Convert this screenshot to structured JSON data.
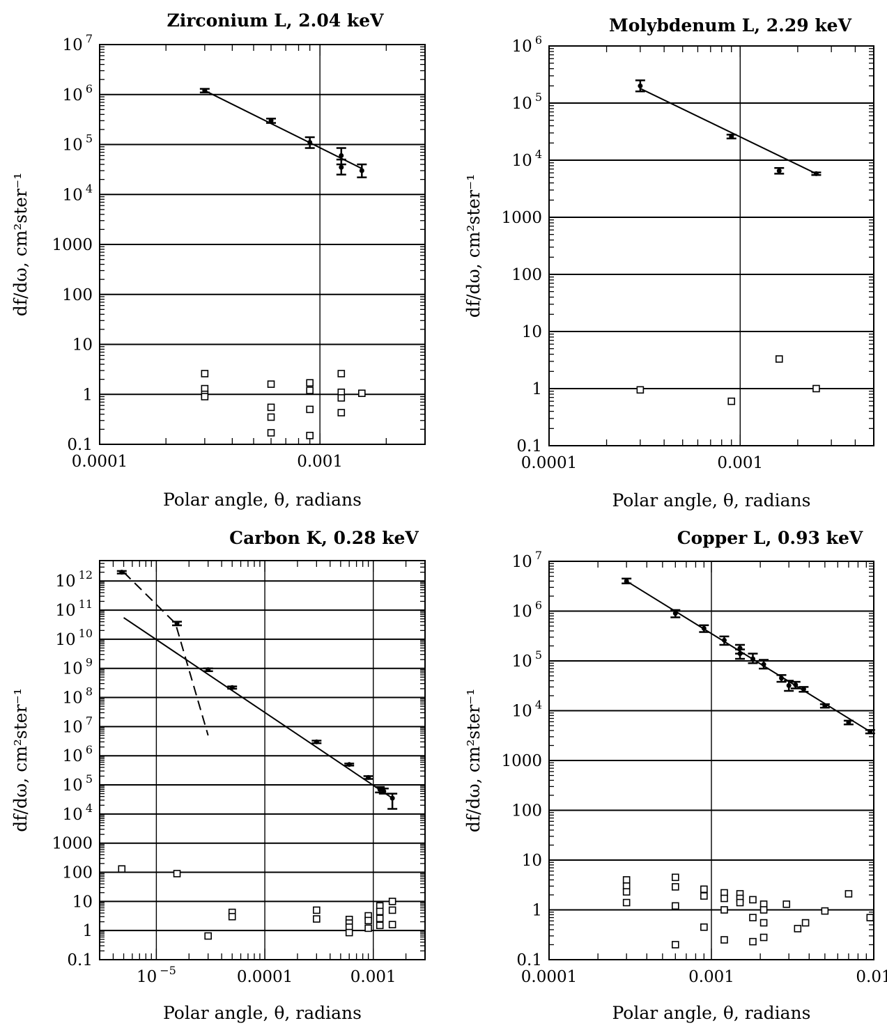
{
  "chart_data": [
    {
      "type": "scatter",
      "title": "Zirconium L, 2.04 keV",
      "xlabel": "Polar angle, θ, radians",
      "ylabel": "df/dω, cm²ster⁻¹",
      "xscale": "log",
      "yscale": "log",
      "xlim": [
        0.0001,
        0.003
      ],
      "ylim": [
        0.1,
        10000000
      ],
      "xticks": [
        {
          "v": 0.0001,
          "label": "0.0001"
        },
        {
          "v": 0.001,
          "label": "0.001"
        }
      ],
      "yticks": [
        {
          "v": 10000000,
          "label": "10",
          "sup": "7"
        },
        {
          "v": 1000000,
          "label": "10",
          "sup": "6"
        },
        {
          "v": 100000,
          "label": "10",
          "sup": "5"
        },
        {
          "v": 10000,
          "label": "10",
          "sup": "4"
        },
        {
          "v": 1000,
          "label": "1000"
        },
        {
          "v": 100,
          "label": "100"
        },
        {
          "v": 10,
          "label": "10"
        },
        {
          "v": 1,
          "label": "1"
        },
        {
          "v": 0.1,
          "label": "0.1"
        }
      ],
      "grid": {
        "y": true,
        "x": [
          0.001
        ]
      },
      "fit_lines": [
        {
          "style": "solid",
          "points": [
            [
              0.0003,
              1200000
            ],
            [
              0.00155,
              33000
            ]
          ]
        }
      ],
      "measured": [
        {
          "x": 0.0003,
          "y": 1200000,
          "lo": 1100000,
          "hi": 1300000
        },
        {
          "x": 0.0006,
          "y": 300000,
          "lo": 270000,
          "hi": 330000
        },
        {
          "x": 0.0009,
          "y": 110000,
          "lo": 85000,
          "hi": 140000
        },
        {
          "x": 0.00125,
          "y": 60000,
          "lo": 40000,
          "hi": 85000
        },
        {
          "x": 0.00125,
          "y": 35000,
          "lo": 25000,
          "hi": 50000
        },
        {
          "x": 0.00155,
          "y": 30000,
          "lo": 22000,
          "hi": 40000
        }
      ],
      "ratios": [
        {
          "x": 0.0003,
          "y": 2.6
        },
        {
          "x": 0.0003,
          "y": 1.3
        },
        {
          "x": 0.0003,
          "y": 1.0
        },
        {
          "x": 0.0003,
          "y": 0.9
        },
        {
          "x": 0.0006,
          "y": 1.6
        },
        {
          "x": 0.0006,
          "y": 0.55
        },
        {
          "x": 0.0006,
          "y": 0.35
        },
        {
          "x": 0.0006,
          "y": 0.17
        },
        {
          "x": 0.0009,
          "y": 1.7
        },
        {
          "x": 0.0009,
          "y": 1.2
        },
        {
          "x": 0.0009,
          "y": 0.5
        },
        {
          "x": 0.0009,
          "y": 0.15
        },
        {
          "x": 0.00125,
          "y": 2.6
        },
        {
          "x": 0.00125,
          "y": 1.1
        },
        {
          "x": 0.00125,
          "y": 0.85
        },
        {
          "x": 0.00125,
          "y": 0.43
        },
        {
          "x": 0.00155,
          "y": 1.05
        }
      ]
    },
    {
      "type": "scatter",
      "title": "Molybdenum L, 2.29 keV",
      "xlabel": "Polar angle, θ, radians",
      "ylabel": "df/dω, cm²ster⁻¹",
      "xscale": "log",
      "yscale": "log",
      "xlim": [
        0.0001,
        0.005
      ],
      "ylim": [
        0.1,
        1000000
      ],
      "xticks": [
        {
          "v": 0.0001,
          "label": "0.0001"
        },
        {
          "v": 0.001,
          "label": "0.001"
        }
      ],
      "yticks": [
        {
          "v": 1000000,
          "label": "10",
          "sup": "6"
        },
        {
          "v": 100000,
          "label": "10",
          "sup": "5"
        },
        {
          "v": 10000,
          "label": "10",
          "sup": "4"
        },
        {
          "v": 1000,
          "label": "1000"
        },
        {
          "v": 100,
          "label": "100"
        },
        {
          "v": 10,
          "label": "10"
        },
        {
          "v": 1,
          "label": "1"
        },
        {
          "v": 0.1,
          "label": "0.1"
        }
      ],
      "grid": {
        "y": true,
        "x": [
          0.001
        ]
      },
      "fit_lines": [
        {
          "style": "solid",
          "points": [
            [
              0.0003,
              180000
            ],
            [
              0.0025,
              5800
            ]
          ]
        }
      ],
      "measured": [
        {
          "x": 0.0003,
          "y": 200000,
          "lo": 160000,
          "hi": 250000
        },
        {
          "x": 0.0009,
          "y": 26000,
          "lo": 24000,
          "hi": 28000
        },
        {
          "x": 0.0016,
          "y": 6500,
          "lo": 5800,
          "hi": 7300
        },
        {
          "x": 0.0025,
          "y": 5800,
          "lo": 5500,
          "hi": 6100
        }
      ],
      "ratios": [
        {
          "x": 0.0003,
          "y": 0.95
        },
        {
          "x": 0.0009,
          "y": 0.6
        },
        {
          "x": 0.0016,
          "y": 3.3
        },
        {
          "x": 0.0025,
          "y": 1.0
        }
      ]
    },
    {
      "type": "scatter",
      "title": "Carbon K, 0.28 keV",
      "xlabel": "Polar angle, θ, radians",
      "ylabel": "df/dω, cm²ster⁻¹",
      "xscale": "log",
      "yscale": "log",
      "xlim": [
        3e-06,
        0.003
      ],
      "ylim": [
        0.1,
        5000000000000
      ],
      "xticks": [
        {
          "v": 1e-05,
          "label": "10",
          "sup": "−5"
        },
        {
          "v": 0.0001,
          "label": "0.0001"
        },
        {
          "v": 0.001,
          "label": "0.001"
        }
      ],
      "yticks": [
        {
          "v": 1000000000000,
          "label": "10",
          "sup": "12"
        },
        {
          "v": 100000000000,
          "label": "10",
          "sup": "11"
        },
        {
          "v": 10000000000,
          "label": "10",
          "sup": "10"
        },
        {
          "v": 1000000000,
          "label": "10",
          "sup": "9"
        },
        {
          "v": 100000000,
          "label": "10",
          "sup": "8"
        },
        {
          "v": 10000000,
          "label": "10",
          "sup": "7"
        },
        {
          "v": 1000000,
          "label": "10",
          "sup": "6"
        },
        {
          "v": 100000,
          "label": "10",
          "sup": "5"
        },
        {
          "v": 10000,
          "label": "10",
          "sup": "4"
        },
        {
          "v": 1000,
          "label": "1000"
        },
        {
          "v": 100,
          "label": "100"
        },
        {
          "v": 10,
          "label": "10"
        },
        {
          "v": 1,
          "label": "1"
        },
        {
          "v": 0.1,
          "label": "0.1"
        }
      ],
      "grid": {
        "y": true,
        "x": [
          1e-05,
          0.0001,
          0.001
        ]
      },
      "fit_lines": [
        {
          "style": "solid",
          "points": [
            [
              5e-06,
              55000000000
            ],
            [
              0.0015,
              35000
            ]
          ]
        },
        {
          "style": "dashed",
          "points": [
            [
              5e-06,
              2000000000000
            ],
            [
              1.5e-05,
              35000000000
            ],
            [
              3e-05,
              5000000
            ]
          ]
        }
      ],
      "measured": [
        {
          "x": 4.8e-06,
          "y": 2000000000000,
          "lo": 1800000000000,
          "hi": 2200000000000
        },
        {
          "x": 1.55e-05,
          "y": 35000000000,
          "lo": 30000000000,
          "hi": 40000000000
        },
        {
          "x": 3e-05,
          "y": 900000000,
          "lo": 800000000,
          "hi": 1000000000
        },
        {
          "x": 5e-05,
          "y": 220000000,
          "lo": 200000000,
          "hi": 240000000
        },
        {
          "x": 0.0003,
          "y": 3000000,
          "lo": 2700000,
          "hi": 3300000
        },
        {
          "x": 0.0006,
          "y": 500000,
          "lo": 460000,
          "hi": 540000
        },
        {
          "x": 0.0009,
          "y": 180000,
          "lo": 160000,
          "hi": 200000
        },
        {
          "x": 0.00115,
          "y": 70000,
          "lo": 55000,
          "hi": 85000
        },
        {
          "x": 0.00125,
          "y": 60000,
          "lo": 50000,
          "hi": 75000
        },
        {
          "x": 0.0015,
          "y": 35000,
          "lo": 15000,
          "hi": 50000
        }
      ],
      "ratios": [
        {
          "x": 4.8e-06,
          "y": 130
        },
        {
          "x": 1.55e-05,
          "y": 90
        },
        {
          "x": 3e-05,
          "y": 0.65
        },
        {
          "x": 5e-05,
          "y": 4.2
        },
        {
          "x": 5e-05,
          "y": 3.0
        },
        {
          "x": 0.0003,
          "y": 5.0
        },
        {
          "x": 0.0003,
          "y": 2.5
        },
        {
          "x": 0.0006,
          "y": 2.4
        },
        {
          "x": 0.0006,
          "y": 1.8
        },
        {
          "x": 0.0006,
          "y": 1.3
        },
        {
          "x": 0.0006,
          "y": 0.85
        },
        {
          "x": 0.0009,
          "y": 3.2
        },
        {
          "x": 0.0009,
          "y": 2.2
        },
        {
          "x": 0.0009,
          "y": 1.2
        },
        {
          "x": 0.00115,
          "y": 7.0
        },
        {
          "x": 0.00115,
          "y": 4.5
        },
        {
          "x": 0.00115,
          "y": 2.6
        },
        {
          "x": 0.00115,
          "y": 1.5
        },
        {
          "x": 0.0015,
          "y": 10.0
        },
        {
          "x": 0.0015,
          "y": 5.0
        },
        {
          "x": 0.0015,
          "y": 1.6
        }
      ]
    },
    {
      "type": "scatter",
      "title": "Copper L, 0.93 keV",
      "xlabel": "Polar angle, θ, radians",
      "ylabel": "df/dω, cm²ster⁻¹",
      "xscale": "log",
      "yscale": "log",
      "xlim": [
        0.0001,
        0.01
      ],
      "ylim": [
        0.1,
        10000000
      ],
      "xticks": [
        {
          "v": 0.0001,
          "label": "0.0001"
        },
        {
          "v": 0.001,
          "label": "0.001"
        },
        {
          "v": 0.01,
          "label": "0.01"
        }
      ],
      "yticks": [
        {
          "v": 10000000,
          "label": "10",
          "sup": "7"
        },
        {
          "v": 1000000,
          "label": "10",
          "sup": "6"
        },
        {
          "v": 100000,
          "label": "10",
          "sup": "5"
        },
        {
          "v": 10000,
          "label": "10",
          "sup": "4"
        },
        {
          "v": 1000,
          "label": "1000"
        },
        {
          "v": 100,
          "label": "100"
        },
        {
          "v": 10,
          "label": "10"
        },
        {
          "v": 1,
          "label": "1"
        },
        {
          "v": 0.1,
          "label": "0.1"
        }
      ],
      "grid": {
        "y": true,
        "x": [
          0.001
        ]
      },
      "fit_lines": [
        {
          "style": "solid",
          "points": [
            [
              0.0003,
              4000000
            ],
            [
              0.0095,
              3800
            ]
          ]
        }
      ],
      "measured": [
        {
          "x": 0.0003,
          "y": 4000000,
          "lo": 3600000,
          "hi": 4500000
        },
        {
          "x": 0.0006,
          "y": 900000,
          "lo": 750000,
          "hi": 1050000
        },
        {
          "x": 0.0009,
          "y": 450000,
          "lo": 380000,
          "hi": 520000
        },
        {
          "x": 0.0012,
          "y": 260000,
          "lo": 210000,
          "hi": 310000
        },
        {
          "x": 0.0015,
          "y": 180000,
          "lo": 140000,
          "hi": 210000
        },
        {
          "x": 0.0015,
          "y": 140000,
          "lo": 110000,
          "hi": 170000
        },
        {
          "x": 0.0018,
          "y": 110000,
          "lo": 90000,
          "hi": 140000
        },
        {
          "x": 0.0021,
          "y": 85000,
          "lo": 70000,
          "hi": 105000
        },
        {
          "x": 0.0027,
          "y": 45000,
          "lo": 38000,
          "hi": 52000
        },
        {
          "x": 0.003,
          "y": 32000,
          "lo": 25000,
          "hi": 40000
        },
        {
          "x": 0.0033,
          "y": 33000,
          "lo": 28000,
          "hi": 38000
        },
        {
          "x": 0.0037,
          "y": 27000,
          "lo": 24000,
          "hi": 30000
        },
        {
          "x": 0.005,
          "y": 12500,
          "lo": 11500,
          "hi": 13500
        },
        {
          "x": 0.007,
          "y": 5800,
          "lo": 5300,
          "hi": 6300
        },
        {
          "x": 0.0095,
          "y": 3800,
          "lo": 3500,
          "hi": 4100
        }
      ],
      "ratios": [
        {
          "x": 0.0003,
          "y": 4.0
        },
        {
          "x": 0.0003,
          "y": 3.0
        },
        {
          "x": 0.0003,
          "y": 2.3
        },
        {
          "x": 0.0003,
          "y": 1.4
        },
        {
          "x": 0.0006,
          "y": 4.5
        },
        {
          "x": 0.0006,
          "y": 2.9
        },
        {
          "x": 0.0006,
          "y": 1.2
        },
        {
          "x": 0.0006,
          "y": 0.2
        },
        {
          "x": 0.0009,
          "y": 2.6
        },
        {
          "x": 0.0009,
          "y": 1.9
        },
        {
          "x": 0.0009,
          "y": 0.45
        },
        {
          "x": 0.0012,
          "y": 2.2
        },
        {
          "x": 0.0012,
          "y": 1.7
        },
        {
          "x": 0.0012,
          "y": 1.0
        },
        {
          "x": 0.0012,
          "y": 0.25
        },
        {
          "x": 0.0015,
          "y": 2.1
        },
        {
          "x": 0.0015,
          "y": 1.7
        },
        {
          "x": 0.0015,
          "y": 1.4
        },
        {
          "x": 0.0018,
          "y": 1.6
        },
        {
          "x": 0.0018,
          "y": 0.7
        },
        {
          "x": 0.0018,
          "y": 0.23
        },
        {
          "x": 0.0021,
          "y": 1.3
        },
        {
          "x": 0.0021,
          "y": 1.0
        },
        {
          "x": 0.0021,
          "y": 0.55
        },
        {
          "x": 0.0021,
          "y": 0.28
        },
        {
          "x": 0.0029,
          "y": 1.3
        },
        {
          "x": 0.0034,
          "y": 0.42
        },
        {
          "x": 0.0038,
          "y": 0.55
        },
        {
          "x": 0.005,
          "y": 0.95
        },
        {
          "x": 0.007,
          "y": 2.1
        },
        {
          "x": 0.0095,
          "y": 0.7
        }
      ]
    }
  ]
}
